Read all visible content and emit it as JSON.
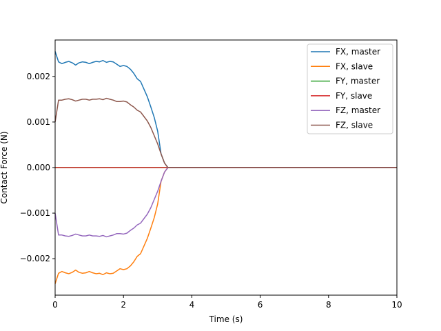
{
  "chart_data": {
    "type": "line",
    "title": "",
    "xlabel": "Time (s)",
    "ylabel": "Contact Force (N)",
    "xlim": [
      0,
      10
    ],
    "ylim": [
      -0.0028,
      0.0028
    ],
    "x_ticks": [
      0,
      2,
      4,
      6,
      8,
      10
    ],
    "x_tick_labels": [
      "0",
      "2",
      "4",
      "6",
      "8",
      "10"
    ],
    "y_ticks": [
      -0.002,
      -0.001,
      0.0,
      0.001,
      0.002
    ],
    "y_tick_labels": [
      "−0.002",
      "−0.001",
      "0.000",
      "0.001",
      "0.002"
    ],
    "grid": false,
    "legend_position": "top-right",
    "x": [
      0.0,
      0.1,
      0.2,
      0.3,
      0.4,
      0.5,
      0.6,
      0.7,
      0.8,
      0.9,
      1.0,
      1.1,
      1.2,
      1.3,
      1.4,
      1.5,
      1.6,
      1.7,
      1.8,
      1.9,
      2.0,
      2.1,
      2.2,
      2.3,
      2.4,
      2.5,
      2.6,
      2.7,
      2.8,
      2.9,
      3.0,
      3.1,
      3.2,
      3.3,
      3.4,
      3.5,
      4.0,
      5.0,
      6.0,
      7.0,
      8.0,
      9.0,
      10.0
    ],
    "series": [
      {
        "name": "FX, master",
        "color": "#1f77b4",
        "values": [
          0.00255,
          0.00232,
          0.00228,
          0.00231,
          0.00233,
          0.0023,
          0.00225,
          0.0023,
          0.00232,
          0.00231,
          0.00228,
          0.00231,
          0.00233,
          0.00232,
          0.00235,
          0.00231,
          0.00233,
          0.00232,
          0.00227,
          0.00222,
          0.00224,
          0.00222,
          0.00216,
          0.00207,
          0.00195,
          0.00189,
          0.00172,
          0.00155,
          0.00133,
          0.0011,
          0.0008,
          0.0003,
          0.0001,
          0.0,
          0.0,
          0.0,
          0.0,
          0.0,
          0.0,
          0.0,
          0.0,
          0.0,
          0.0
        ]
      },
      {
        "name": "FX, slave",
        "color": "#ff7f0e",
        "values": [
          -0.00255,
          -0.00232,
          -0.00228,
          -0.00231,
          -0.00233,
          -0.0023,
          -0.00225,
          -0.0023,
          -0.00232,
          -0.00231,
          -0.00228,
          -0.00231,
          -0.00233,
          -0.00232,
          -0.00235,
          -0.00231,
          -0.00233,
          -0.00232,
          -0.00227,
          -0.00222,
          -0.00224,
          -0.00222,
          -0.00216,
          -0.00207,
          -0.00195,
          -0.00189,
          -0.00172,
          -0.00155,
          -0.00133,
          -0.0011,
          -0.0008,
          -0.0003,
          -0.0001,
          0.0,
          0.0,
          0.0,
          0.0,
          0.0,
          0.0,
          0.0,
          0.0,
          0.0,
          0.0
        ]
      },
      {
        "name": "FY, master",
        "color": "#2ca02c",
        "values": [
          0.0,
          0.0,
          0.0,
          0.0,
          0.0,
          0.0,
          0.0,
          0.0,
          0.0,
          0.0,
          0.0,
          0.0,
          0.0,
          0.0,
          0.0,
          0.0,
          0.0,
          0.0,
          0.0,
          0.0,
          0.0,
          0.0,
          0.0,
          0.0,
          0.0,
          0.0,
          0.0,
          0.0,
          0.0,
          0.0,
          0.0,
          0.0,
          0.0,
          0.0,
          0.0,
          0.0,
          0.0,
          0.0,
          0.0,
          0.0,
          0.0,
          0.0,
          0.0
        ]
      },
      {
        "name": "FY, slave",
        "color": "#d62728",
        "values": [
          0.0,
          0.0,
          0.0,
          0.0,
          0.0,
          0.0,
          0.0,
          0.0,
          0.0,
          0.0,
          0.0,
          0.0,
          0.0,
          0.0,
          0.0,
          0.0,
          0.0,
          0.0,
          0.0,
          0.0,
          0.0,
          0.0,
          0.0,
          0.0,
          0.0,
          0.0,
          0.0,
          0.0,
          0.0,
          0.0,
          0.0,
          0.0,
          0.0,
          0.0,
          0.0,
          0.0,
          0.0,
          0.0,
          0.0,
          0.0,
          0.0,
          0.0,
          0.0
        ]
      },
      {
        "name": "FZ, master",
        "color": "#9467bd",
        "values": [
          -0.001,
          -0.00148,
          -0.00148,
          -0.0015,
          -0.00151,
          -0.00149,
          -0.00146,
          -0.00148,
          -0.0015,
          -0.0015,
          -0.00148,
          -0.0015,
          -0.0015,
          -0.00151,
          -0.00149,
          -0.00152,
          -0.0015,
          -0.00148,
          -0.00145,
          -0.00145,
          -0.00146,
          -0.00144,
          -0.00138,
          -0.00133,
          -0.00126,
          -0.00122,
          -0.00112,
          -0.00102,
          -0.00088,
          -0.0007,
          -0.00052,
          -0.0003,
          -0.0001,
          0.0,
          0.0,
          0.0,
          0.0,
          0.0,
          0.0,
          0.0,
          0.0,
          0.0,
          0.0
        ]
      },
      {
        "name": "FZ, slave",
        "color": "#8c564b",
        "values": [
          0.001,
          0.00148,
          0.00148,
          0.0015,
          0.00151,
          0.00149,
          0.00146,
          0.00148,
          0.0015,
          0.0015,
          0.00148,
          0.0015,
          0.0015,
          0.00151,
          0.00149,
          0.00152,
          0.0015,
          0.00148,
          0.00145,
          0.00145,
          0.00146,
          0.00144,
          0.00138,
          0.00133,
          0.00126,
          0.00122,
          0.00112,
          0.00102,
          0.00088,
          0.0007,
          0.00052,
          0.0003,
          0.0001,
          0.0,
          0.0,
          0.0,
          0.0,
          0.0,
          0.0,
          0.0,
          0.0,
          0.0,
          0.0
        ]
      }
    ]
  }
}
